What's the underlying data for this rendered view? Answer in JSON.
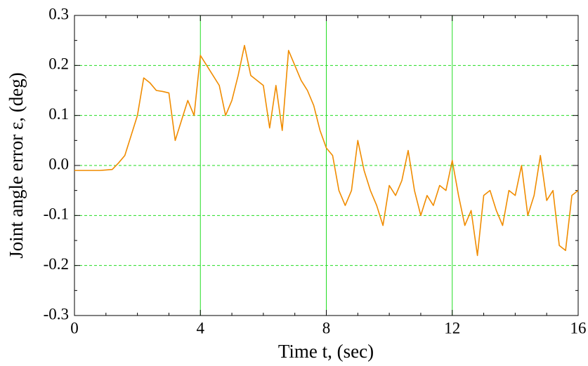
{
  "chart_data": {
    "type": "line",
    "xlabel": "Time t, (sec)",
    "ylabel": "Joint angle error ε, (deg)",
    "x": [
      0,
      0.2,
      0.4,
      0.6,
      0.8,
      1.0,
      1.2,
      1.4,
      1.6,
      1.8,
      2.0,
      2.2,
      2.4,
      2.6,
      2.8,
      3.0,
      3.2,
      3.4,
      3.6,
      3.8,
      4.0,
      4.2,
      4.4,
      4.6,
      4.8,
      5.0,
      5.2,
      5.4,
      5.6,
      5.8,
      6.0,
      6.2,
      6.4,
      6.6,
      6.8,
      7.0,
      7.2,
      7.4,
      7.6,
      7.8,
      8.0,
      8.2,
      8.4,
      8.6,
      8.8,
      9.0,
      9.2,
      9.4,
      9.6,
      9.8,
      10.0,
      10.2,
      10.4,
      10.6,
      10.8,
      11.0,
      11.2,
      11.4,
      11.6,
      11.8,
      12.0,
      12.2,
      12.4,
      12.6,
      12.8,
      13.0,
      13.2,
      13.4,
      13.6,
      13.8,
      14.0,
      14.2,
      14.4,
      14.6,
      14.8,
      15.0,
      15.2,
      15.4,
      15.6,
      15.8,
      16.0
    ],
    "series": [
      {
        "color": "#f08c00",
        "values": [
          -0.01,
          -0.01,
          -0.01,
          -0.01,
          -0.01,
          -0.009,
          -0.008,
          0.005,
          0.02,
          0.06,
          0.1,
          0.175,
          0.165,
          0.15,
          0.148,
          0.145,
          0.05,
          0.09,
          0.13,
          0.1,
          0.22,
          0.2,
          0.18,
          0.16,
          0.1,
          0.13,
          0.18,
          0.24,
          0.18,
          0.17,
          0.16,
          0.075,
          0.16,
          0.07,
          0.23,
          0.2,
          0.17,
          0.15,
          0.12,
          0.07,
          0.035,
          0.02,
          -0.05,
          -0.08,
          -0.05,
          0.05,
          -0.01,
          -0.05,
          -0.08,
          -0.12,
          -0.04,
          -0.06,
          -0.03,
          0.03,
          -0.05,
          -0.1,
          -0.06,
          -0.08,
          -0.04,
          -0.05,
          0.01,
          -0.06,
          -0.12,
          -0.09,
          -0.18,
          -0.06,
          -0.05,
          -0.09,
          -0.12,
          -0.05,
          -0.06,
          0.0,
          -0.1,
          -0.06,
          0.02,
          -0.07,
          -0.05,
          -0.16,
          -0.17,
          -0.06,
          -0.05
        ]
      }
    ],
    "xlim": [
      0,
      16
    ],
    "xticks": [
      0,
      4,
      8,
      12,
      16
    ],
    "ylim": [
      -0.3,
      0.3
    ],
    "yticks": [
      -0.3,
      -0.2,
      -0.1,
      {
        "value": 0,
        "label": "0.0"
      },
      0.1,
      0.2,
      0.3
    ],
    "grid": true,
    "grid_color": "#22dd22"
  }
}
